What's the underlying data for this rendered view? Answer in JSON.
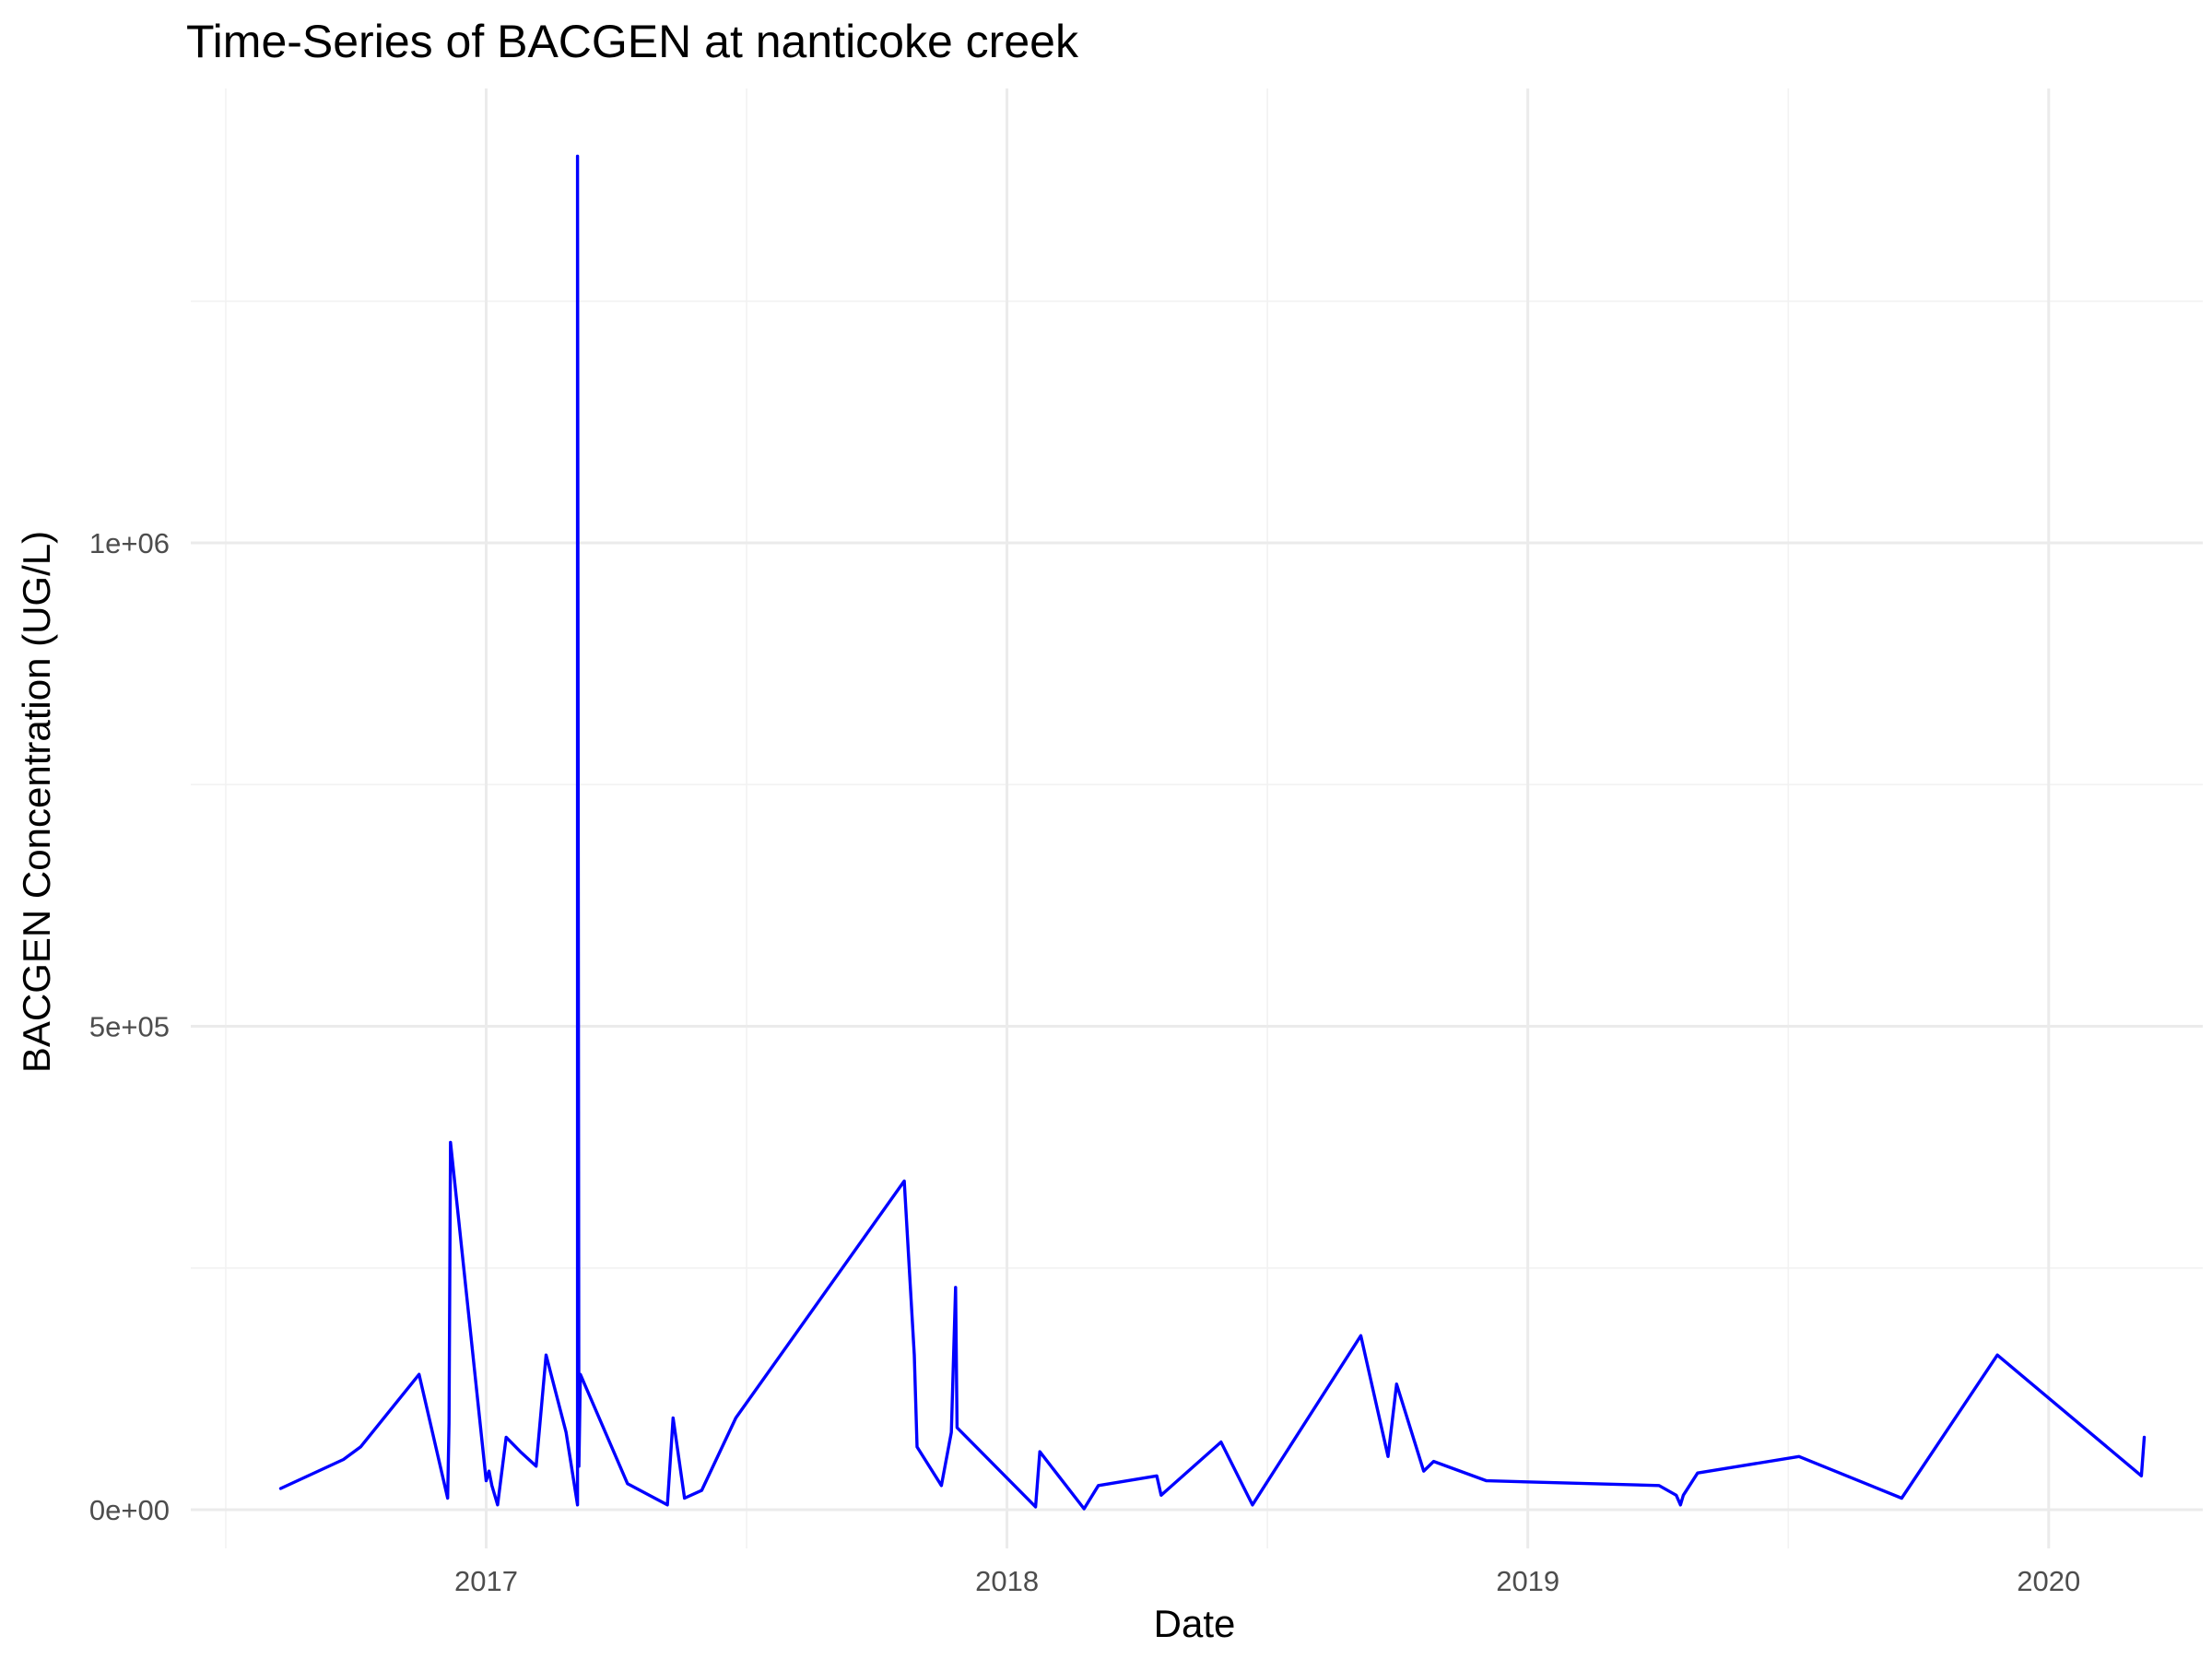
{
  "chart_data": {
    "type": "line",
    "title": "Time-Series of BACGEN at nanticoke creek",
    "xlabel": "Date",
    "ylabel": "BACGEN Concentration (UG/L)",
    "x_ticks": [
      {
        "value": "2017-01-01",
        "label": "2017"
      },
      {
        "value": "2018-01-01",
        "label": "2018"
      },
      {
        "value": "2019-01-01",
        "label": "2019"
      },
      {
        "value": "2020-01-01",
        "label": "2020"
      }
    ],
    "y_ticks": [
      {
        "value": 0,
        "label": "0e+00"
      },
      {
        "value": 500000,
        "label": "5e+05"
      },
      {
        "value": 1000000,
        "label": "1e+06"
      }
    ],
    "xlim": [
      "2016-06-08",
      "2020-04-18"
    ],
    "ylim": [
      -40000,
      1470000
    ],
    "grid": true,
    "line_color": "#0000ff",
    "series": [
      {
        "x": [
          "2016-08-10",
          "2016-09-23",
          "2016-10-05",
          "2016-11-15",
          "2016-12-05",
          "2016-12-06",
          "2016-12-07",
          "2017-01-01",
          "2017-01-03",
          "2017-01-05",
          "2017-01-09",
          "2017-01-15",
          "2017-01-25",
          "2017-02-05",
          "2017-02-12",
          "2017-02-26",
          "2017-03-06",
          "2017-03-06",
          "2017-03-07",
          "2017-03-08",
          "2017-04-10",
          "2017-05-08",
          "2017-05-12",
          "2017-05-20",
          "2017-06-01",
          "2017-06-25",
          "2017-10-21",
          "2017-10-28",
          "2017-10-30",
          "2017-11-16",
          "2017-11-23",
          "2017-11-26",
          "2017-11-27",
          "2018-01-21",
          "2018-01-24",
          "2018-02-24",
          "2018-03-06",
          "2018-04-16",
          "2018-04-19",
          "2018-05-31",
          "2018-06-22",
          "2018-09-06",
          "2018-09-25",
          "2018-10-01",
          "2018-10-20",
          "2018-10-27",
          "2018-12-03",
          "2019-04-03",
          "2019-04-15",
          "2019-04-18",
          "2019-04-20",
          "2019-04-30",
          "2019-07-10",
          "2019-09-20",
          "2019-11-26",
          "2020-03-06",
          "2020-03-08"
        ],
        "y": [
          22000,
          52000,
          65000,
          140000,
          12000,
          90000,
          380000,
          30000,
          40000,
          25000,
          5000,
          75000,
          60000,
          45000,
          160000,
          80000,
          5000,
          1400000,
          45000,
          140000,
          27000,
          5000,
          95000,
          12000,
          20000,
          95000,
          340000,
          160000,
          65000,
          25000,
          80000,
          230000,
          85000,
          3000,
          60000,
          1000,
          25000,
          35000,
          15000,
          70000,
          5000,
          180000,
          55000,
          130000,
          40000,
          50000,
          30000,
          25000,
          15000,
          5000,
          15000,
          38000,
          55000,
          12000,
          160000,
          35000,
          75000
        ]
      }
    ]
  }
}
